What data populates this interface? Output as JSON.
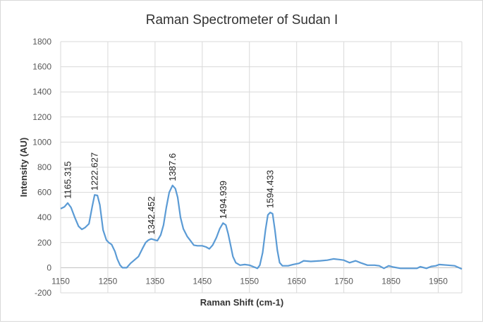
{
  "chart_data": {
    "type": "line",
    "title": "Raman Spectrometer of Sudan I",
    "xlabel": "Raman Shift (cm-1)",
    "ylabel": "Intensity (AU)",
    "xlim": [
      1150,
      2000
    ],
    "ylim": [
      -200,
      1800
    ],
    "xticks": [
      1150,
      1250,
      1350,
      1450,
      1550,
      1650,
      1750,
      1850,
      1950
    ],
    "yticks": [
      -200,
      0,
      200,
      400,
      600,
      800,
      1000,
      1200,
      1400,
      1600,
      1800
    ],
    "grid": true,
    "legend": "none",
    "series": [
      {
        "name": "Sudan I",
        "color": "#5b9bd5",
        "points": [
          [
            1150,
            470
          ],
          [
            1158,
            485
          ],
          [
            1165,
            515
          ],
          [
            1172,
            480
          ],
          [
            1180,
            400
          ],
          [
            1188,
            330
          ],
          [
            1195,
            305
          ],
          [
            1202,
            320
          ],
          [
            1210,
            350
          ],
          [
            1217,
            490
          ],
          [
            1222,
            580
          ],
          [
            1228,
            575
          ],
          [
            1233,
            500
          ],
          [
            1240,
            300
          ],
          [
            1247,
            220
          ],
          [
            1252,
            200
          ],
          [
            1258,
            185
          ],
          [
            1265,
            130
          ],
          [
            1270,
            70
          ],
          [
            1276,
            20
          ],
          [
            1281,
            0
          ],
          [
            1290,
            0
          ],
          [
            1298,
            35
          ],
          [
            1306,
            60
          ],
          [
            1315,
            90
          ],
          [
            1323,
            150
          ],
          [
            1330,
            200
          ],
          [
            1336,
            220
          ],
          [
            1342,
            230
          ],
          [
            1350,
            220
          ],
          [
            1355,
            215
          ],
          [
            1362,
            260
          ],
          [
            1368,
            340
          ],
          [
            1374,
            480
          ],
          [
            1380,
            600
          ],
          [
            1387,
            655
          ],
          [
            1393,
            630
          ],
          [
            1398,
            560
          ],
          [
            1404,
            400
          ],
          [
            1410,
            310
          ],
          [
            1418,
            250
          ],
          [
            1425,
            215
          ],
          [
            1432,
            180
          ],
          [
            1440,
            175
          ],
          [
            1450,
            175
          ],
          [
            1458,
            165
          ],
          [
            1465,
            150
          ],
          [
            1472,
            180
          ],
          [
            1480,
            240
          ],
          [
            1487,
            310
          ],
          [
            1494,
            355
          ],
          [
            1500,
            340
          ],
          [
            1505,
            270
          ],
          [
            1510,
            180
          ],
          [
            1515,
            90
          ],
          [
            1521,
            40
          ],
          [
            1530,
            20
          ],
          [
            1540,
            25
          ],
          [
            1550,
            20
          ],
          [
            1560,
            5
          ],
          [
            1567,
            -5
          ],
          [
            1572,
            20
          ],
          [
            1578,
            120
          ],
          [
            1584,
            300
          ],
          [
            1589,
            420
          ],
          [
            1594,
            440
          ],
          [
            1599,
            430
          ],
          [
            1604,
            300
          ],
          [
            1609,
            140
          ],
          [
            1614,
            40
          ],
          [
            1620,
            15
          ],
          [
            1632,
            15
          ],
          [
            1642,
            25
          ],
          [
            1655,
            35
          ],
          [
            1665,
            55
          ],
          [
            1680,
            50
          ],
          [
            1700,
            55
          ],
          [
            1715,
            60
          ],
          [
            1728,
            70
          ],
          [
            1740,
            65
          ],
          [
            1750,
            60
          ],
          [
            1762,
            40
          ],
          [
            1775,
            55
          ],
          [
            1785,
            40
          ],
          [
            1800,
            20
          ],
          [
            1815,
            20
          ],
          [
            1825,
            15
          ],
          [
            1835,
            -5
          ],
          [
            1845,
            15
          ],
          [
            1855,
            5
          ],
          [
            1870,
            -5
          ],
          [
            1890,
            -5
          ],
          [
            1905,
            -5
          ],
          [
            1912,
            8
          ],
          [
            1925,
            -5
          ],
          [
            1935,
            10
          ],
          [
            1945,
            15
          ],
          [
            1952,
            25
          ],
          [
            1970,
            20
          ],
          [
            1985,
            15
          ],
          [
            2000,
            -10
          ]
        ]
      }
    ],
    "annotations": [
      {
        "label": "1165.315",
        "x": 1165.315,
        "y": 515
      },
      {
        "label": "1222.627",
        "x": 1222.627,
        "y": 580
      },
      {
        "label": "1342.452",
        "x": 1342.452,
        "y": 230
      },
      {
        "label": "1387.6",
        "x": 1387.6,
        "y": 655
      },
      {
        "label": "1494.939",
        "x": 1494.939,
        "y": 355
      },
      {
        "label": "1594.433",
        "x": 1594.433,
        "y": 440
      }
    ]
  }
}
